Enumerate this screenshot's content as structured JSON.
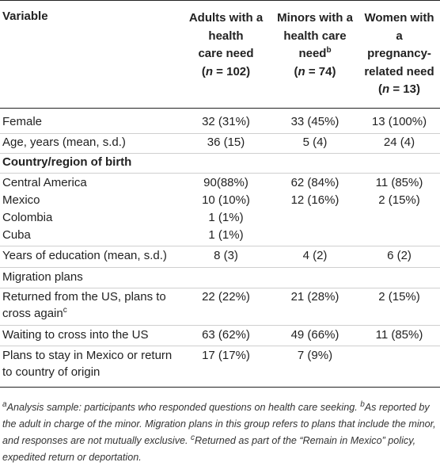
{
  "header": {
    "variable": "Variable",
    "adults": [
      "Adults with a",
      "health",
      "care need"
    ],
    "adults_n": "102",
    "minors": [
      "Minors with a",
      "health care"
    ],
    "minors_need": "need",
    "minors_sup": "b",
    "minors_n": "74",
    "women": [
      "Women with",
      "a",
      "pregnancy-",
      "related need"
    ],
    "women_n": "13",
    "n_letter": "n",
    "n_prefix": "(",
    "n_eq": " = ",
    "n_suffix": ")"
  },
  "rows": [
    {
      "label": "Female",
      "adults": "32 (31%)",
      "minors": "33 (45%)",
      "women": "13 (100%)"
    },
    {
      "label": "Age, years (mean, s.d.)",
      "adults": "36 (15)",
      "minors": "5 (4)",
      "women": "24 (4)"
    }
  ],
  "country_heading": "Country/region of birth",
  "country_rows": [
    {
      "label": "Central America",
      "adults": "90(88%)",
      "minors": "62 (84%)",
      "women": "11 (85%)"
    },
    {
      "label": "Mexico",
      "adults": "10 (10%)",
      "minors": "12 (16%)",
      "women": "2 (15%)"
    },
    {
      "label": "Colombia",
      "adults": "1 (1%)",
      "minors": "",
      "women": ""
    },
    {
      "label": "Cuba",
      "adults": "1 (1%)",
      "minors": "",
      "women": ""
    }
  ],
  "education": {
    "label": "Years of education (mean, s.d.)",
    "adults": "8 (3)",
    "minors": "4 (2)",
    "women": "6 (2)"
  },
  "migration_heading": "Migration plans",
  "returned": {
    "label_line1": "Returned from the US, plans to",
    "label_line2": "cross again",
    "sup": "c",
    "adults": "22 (22%)",
    "minors": "21 (28%)",
    "women": "2 (15%)"
  },
  "waiting": {
    "label": "Waiting to cross into the US",
    "adults": "63 (62%)",
    "minors": "49 (66%)",
    "women": "11 (85%)"
  },
  "plans_stay": {
    "label_line1": "Plans to stay in Mexico or return",
    "label_line2": "to country of origin",
    "adults": "17 (17%)",
    "minors": "7 (9%)",
    "women": ""
  },
  "footnote": {
    "a_sup": "a",
    "a_text": "Analysis sample: participants who responded questions on health care seeking. ",
    "b_sup": "b",
    "b_text": "As reported by the adult in charge of the minor. Migration plans in this group refers to plans that include the minor, and responses are not mutually exclusive. ",
    "c_sup": "c",
    "c_text": "Returned as part of the “Remain in Mexico” policy, expedited return or deportation."
  }
}
